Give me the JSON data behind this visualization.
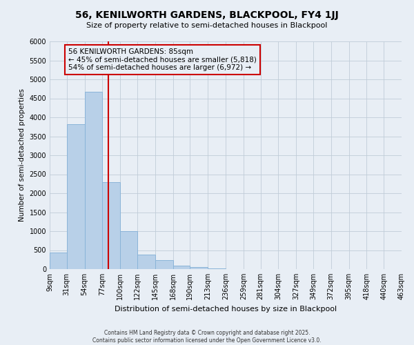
{
  "title": "56, KENILWORTH GARDENS, BLACKPOOL, FY4 1JJ",
  "subtitle": "Size of property relative to semi-detached houses in Blackpool",
  "xlabel": "Distribution of semi-detached houses by size in Blackpool",
  "ylabel": "Number of semi-detached properties",
  "annotation_title": "56 KENILWORTH GARDENS: 85sqm",
  "annotation_line1": "← 45% of semi-detached houses are smaller (5,818)",
  "annotation_line2": "54% of semi-detached houses are larger (6,972) →",
  "property_size": 85,
  "footer1": "Contains HM Land Registry data © Crown copyright and database right 2025.",
  "footer2": "Contains public sector information licensed under the Open Government Licence v3.0.",
  "bins": [
    9,
    31,
    54,
    77,
    100,
    122,
    145,
    168,
    190,
    213,
    236,
    259,
    281,
    304,
    327,
    349,
    372,
    395,
    418,
    440,
    463
  ],
  "counts": [
    430,
    3820,
    4680,
    2300,
    1000,
    390,
    245,
    100,
    60,
    10,
    0,
    0,
    0,
    0,
    0,
    0,
    0,
    0,
    0,
    0
  ],
  "bar_color": "#b8d0e8",
  "bar_edge_color": "#8ab4d8",
  "vline_color": "#cc0000",
  "annotation_box_color": "#cc0000",
  "background_color": "#e8eef5",
  "plot_bg_color": "#e8eef5",
  "grid_color": "#c0ccd8",
  "ylim": [
    0,
    6000
  ],
  "yticks": [
    0,
    500,
    1000,
    1500,
    2000,
    2500,
    3000,
    3500,
    4000,
    4500,
    5000,
    5500,
    6000
  ]
}
